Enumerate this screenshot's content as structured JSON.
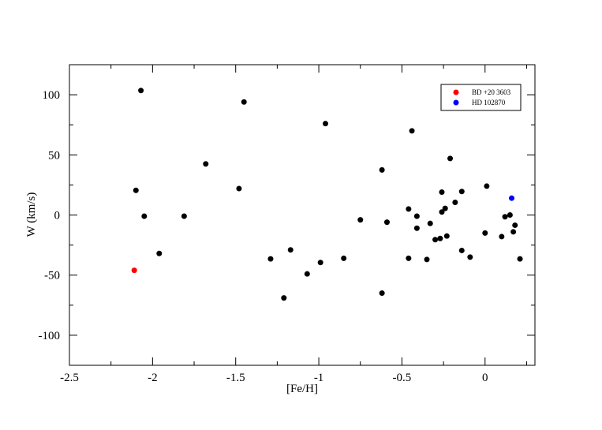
{
  "chart_data": {
    "type": "scatter",
    "title": "",
    "xlabel": "[Fe/H]",
    "ylabel": "W (km/s)",
    "xlim": [
      -2.5,
      0.3
    ],
    "ylim": [
      -125,
      125
    ],
    "xticks": [
      -2.5,
      -2,
      -1.5,
      -1,
      -0.5,
      0
    ],
    "yticks": [
      -100,
      -50,
      0,
      50,
      100
    ],
    "xtick_labels": [
      "-2.5",
      "-2",
      "-1.5",
      "-1",
      "-0.5",
      "0"
    ],
    "ytick_labels": [
      "-100",
      "-50",
      "0",
      "50",
      "100"
    ],
    "grid": false,
    "legend_position": "top-right",
    "series": [
      {
        "name": "",
        "color": "#000000",
        "points": [
          {
            "x": -2.07,
            "y": 103.5
          },
          {
            "x": -1.45,
            "y": 94
          },
          {
            "x": -0.96,
            "y": 76
          },
          {
            "x": -0.44,
            "y": 70
          },
          {
            "x": -1.68,
            "y": 42.5
          },
          {
            "x": -0.21,
            "y": 47
          },
          {
            "x": -0.62,
            "y": 37.5
          },
          {
            "x": -2.1,
            "y": 20.5
          },
          {
            "x": -1.48,
            "y": 22
          },
          {
            "x": 0.01,
            "y": 24
          },
          {
            "x": -0.14,
            "y": 19.5
          },
          {
            "x": -0.26,
            "y": 19
          },
          {
            "x": -0.18,
            "y": 10.5
          },
          {
            "x": -0.24,
            "y": 5.5
          },
          {
            "x": -0.46,
            "y": 5
          },
          {
            "x": -0.26,
            "y": 2.5
          },
          {
            "x": -2.05,
            "y": -1
          },
          {
            "x": -1.81,
            "y": -1
          },
          {
            "x": -0.41,
            "y": -1
          },
          {
            "x": 0.15,
            "y": 0
          },
          {
            "x": 0.12,
            "y": -1.5
          },
          {
            "x": -0.75,
            "y": -4
          },
          {
            "x": -0.59,
            "y": -6
          },
          {
            "x": -0.33,
            "y": -7
          },
          {
            "x": 0.18,
            "y": -8.5
          },
          {
            "x": -0.41,
            "y": -11
          },
          {
            "x": 0.0,
            "y": -15
          },
          {
            "x": 0.17,
            "y": -14
          },
          {
            "x": -0.23,
            "y": -17.5
          },
          {
            "x": 0.1,
            "y": -18
          },
          {
            "x": -0.27,
            "y": -19.5
          },
          {
            "x": -0.3,
            "y": -20.5
          },
          {
            "x": -0.14,
            "y": -29.5
          },
          {
            "x": -1.17,
            "y": -29
          },
          {
            "x": -1.96,
            "y": -32
          },
          {
            "x": -0.09,
            "y": -35
          },
          {
            "x": -0.85,
            "y": -36
          },
          {
            "x": -0.46,
            "y": -36
          },
          {
            "x": -0.35,
            "y": -37
          },
          {
            "x": -1.29,
            "y": -36.5
          },
          {
            "x": 0.21,
            "y": -36.5
          },
          {
            "x": -0.99,
            "y": -39.5
          },
          {
            "x": -1.07,
            "y": -49
          },
          {
            "x": -0.62,
            "y": -65
          },
          {
            "x": -1.21,
            "y": -69
          }
        ]
      },
      {
        "name": "BD +20 3603",
        "color": "#ff0000",
        "points": [
          {
            "x": -2.11,
            "y": -46
          }
        ]
      },
      {
        "name": "HD 102870",
        "color": "#0000ff",
        "points": [
          {
            "x": 0.16,
            "y": 14
          }
        ]
      }
    ]
  }
}
